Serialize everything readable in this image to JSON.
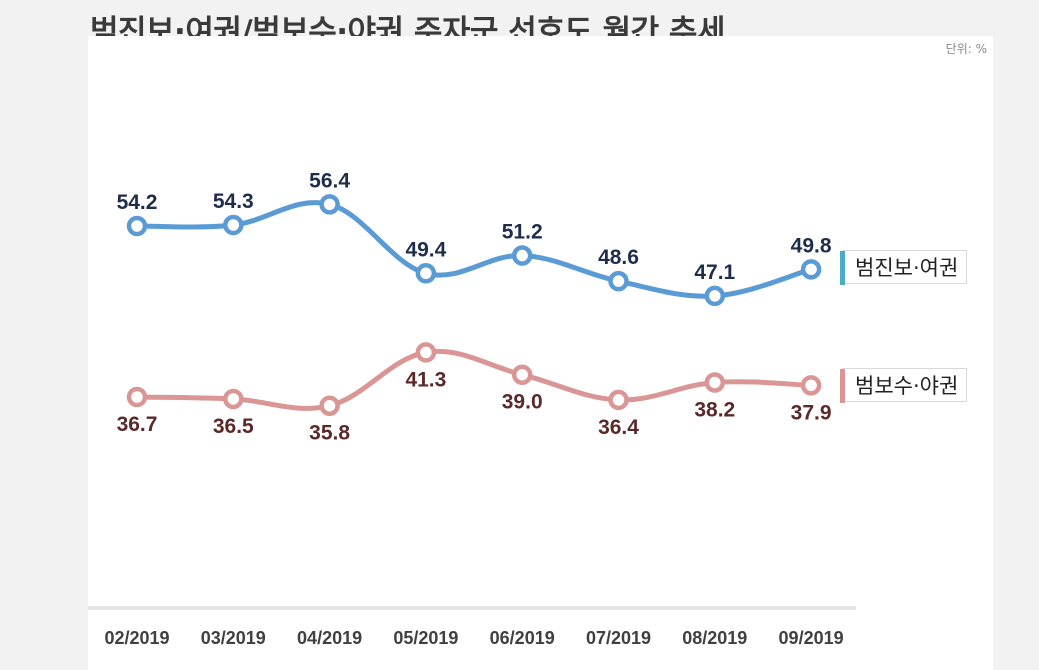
{
  "title": "범진보·여권/범보수·야권 주자군 선호도 월간 추세",
  "unit_label": "단위: %",
  "colors": {
    "progressive": "#5b9bd5",
    "progressive_label": "#1f2d4d",
    "progressive_legend_bar": "#4bacc6",
    "conservative": "#d99694",
    "conservative_label": "#5a2a2a",
    "conservative_legend_bar": "#d99694"
  },
  "chart_data": {
    "type": "line",
    "title": "범진보·여권/범보수·야권 주자군 선호도 월간 추세",
    "categories": [
      "02/2019",
      "03/2019",
      "04/2019",
      "05/2019",
      "06/2019",
      "07/2019",
      "08/2019",
      "09/2019"
    ],
    "series": [
      {
        "name": "범진보·여권",
        "values": [
          54.2,
          54.3,
          56.4,
          49.4,
          51.2,
          48.6,
          47.1,
          49.8
        ]
      },
      {
        "name": "범보수·야권",
        "values": [
          36.7,
          36.5,
          35.8,
          41.3,
          39.0,
          36.4,
          38.2,
          37.9
        ]
      }
    ],
    "xlabel": "",
    "ylabel": "",
    "grid": false,
    "legend_placement": "right"
  }
}
